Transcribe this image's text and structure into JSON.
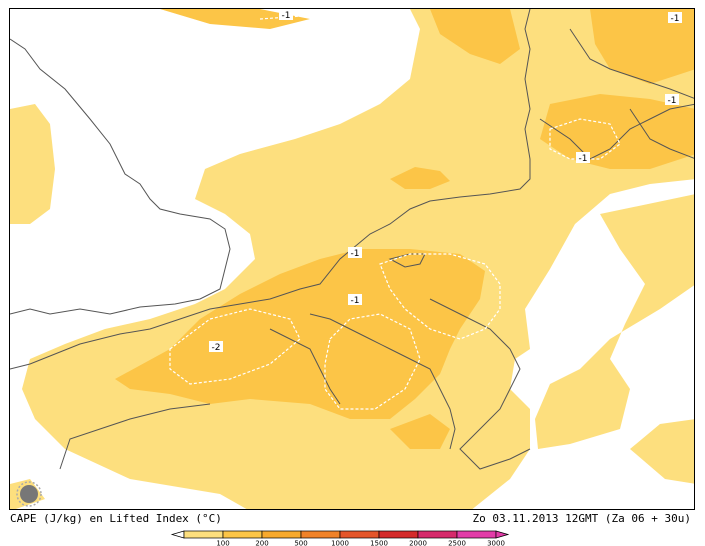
{
  "caption": {
    "left": "CAPE (J/kg) en Lifted Index (°C)",
    "right": "Zo 03.11.2013 12GMT (Za 06 + 30u)"
  },
  "colors": {
    "cape_100": "#fddf7e",
    "cape_200": "#fcc547",
    "cape_500": "#f8a92c",
    "cape_1000": "#f08228",
    "cape_1500": "#e4552a",
    "cape_2000": "#d42a2a",
    "cape_2500": "#d62a6b",
    "cape_3000": "#e23ca8",
    "coast": "#555555",
    "contour": "#ffffff"
  },
  "legend": {
    "labels": [
      "100",
      "200",
      "500",
      "1000",
      "1500",
      "2000",
      "2500",
      "3000"
    ]
  },
  "lifted_index_labels": [
    {
      "name": "li-label-top-center",
      "text": "-1"
    },
    {
      "name": "li-label-top-right",
      "text": "-1"
    },
    {
      "name": "li-label-denmark",
      "text": "-1"
    },
    {
      "name": "li-label-germany-coast",
      "text": "-1"
    },
    {
      "name": "li-label-netherlands",
      "text": "-1"
    },
    {
      "name": "li-label-belgium",
      "text": "-1"
    },
    {
      "name": "li-label-france",
      "text": "-2"
    }
  ],
  "icons": {
    "logo": "sun-logo-icon"
  }
}
